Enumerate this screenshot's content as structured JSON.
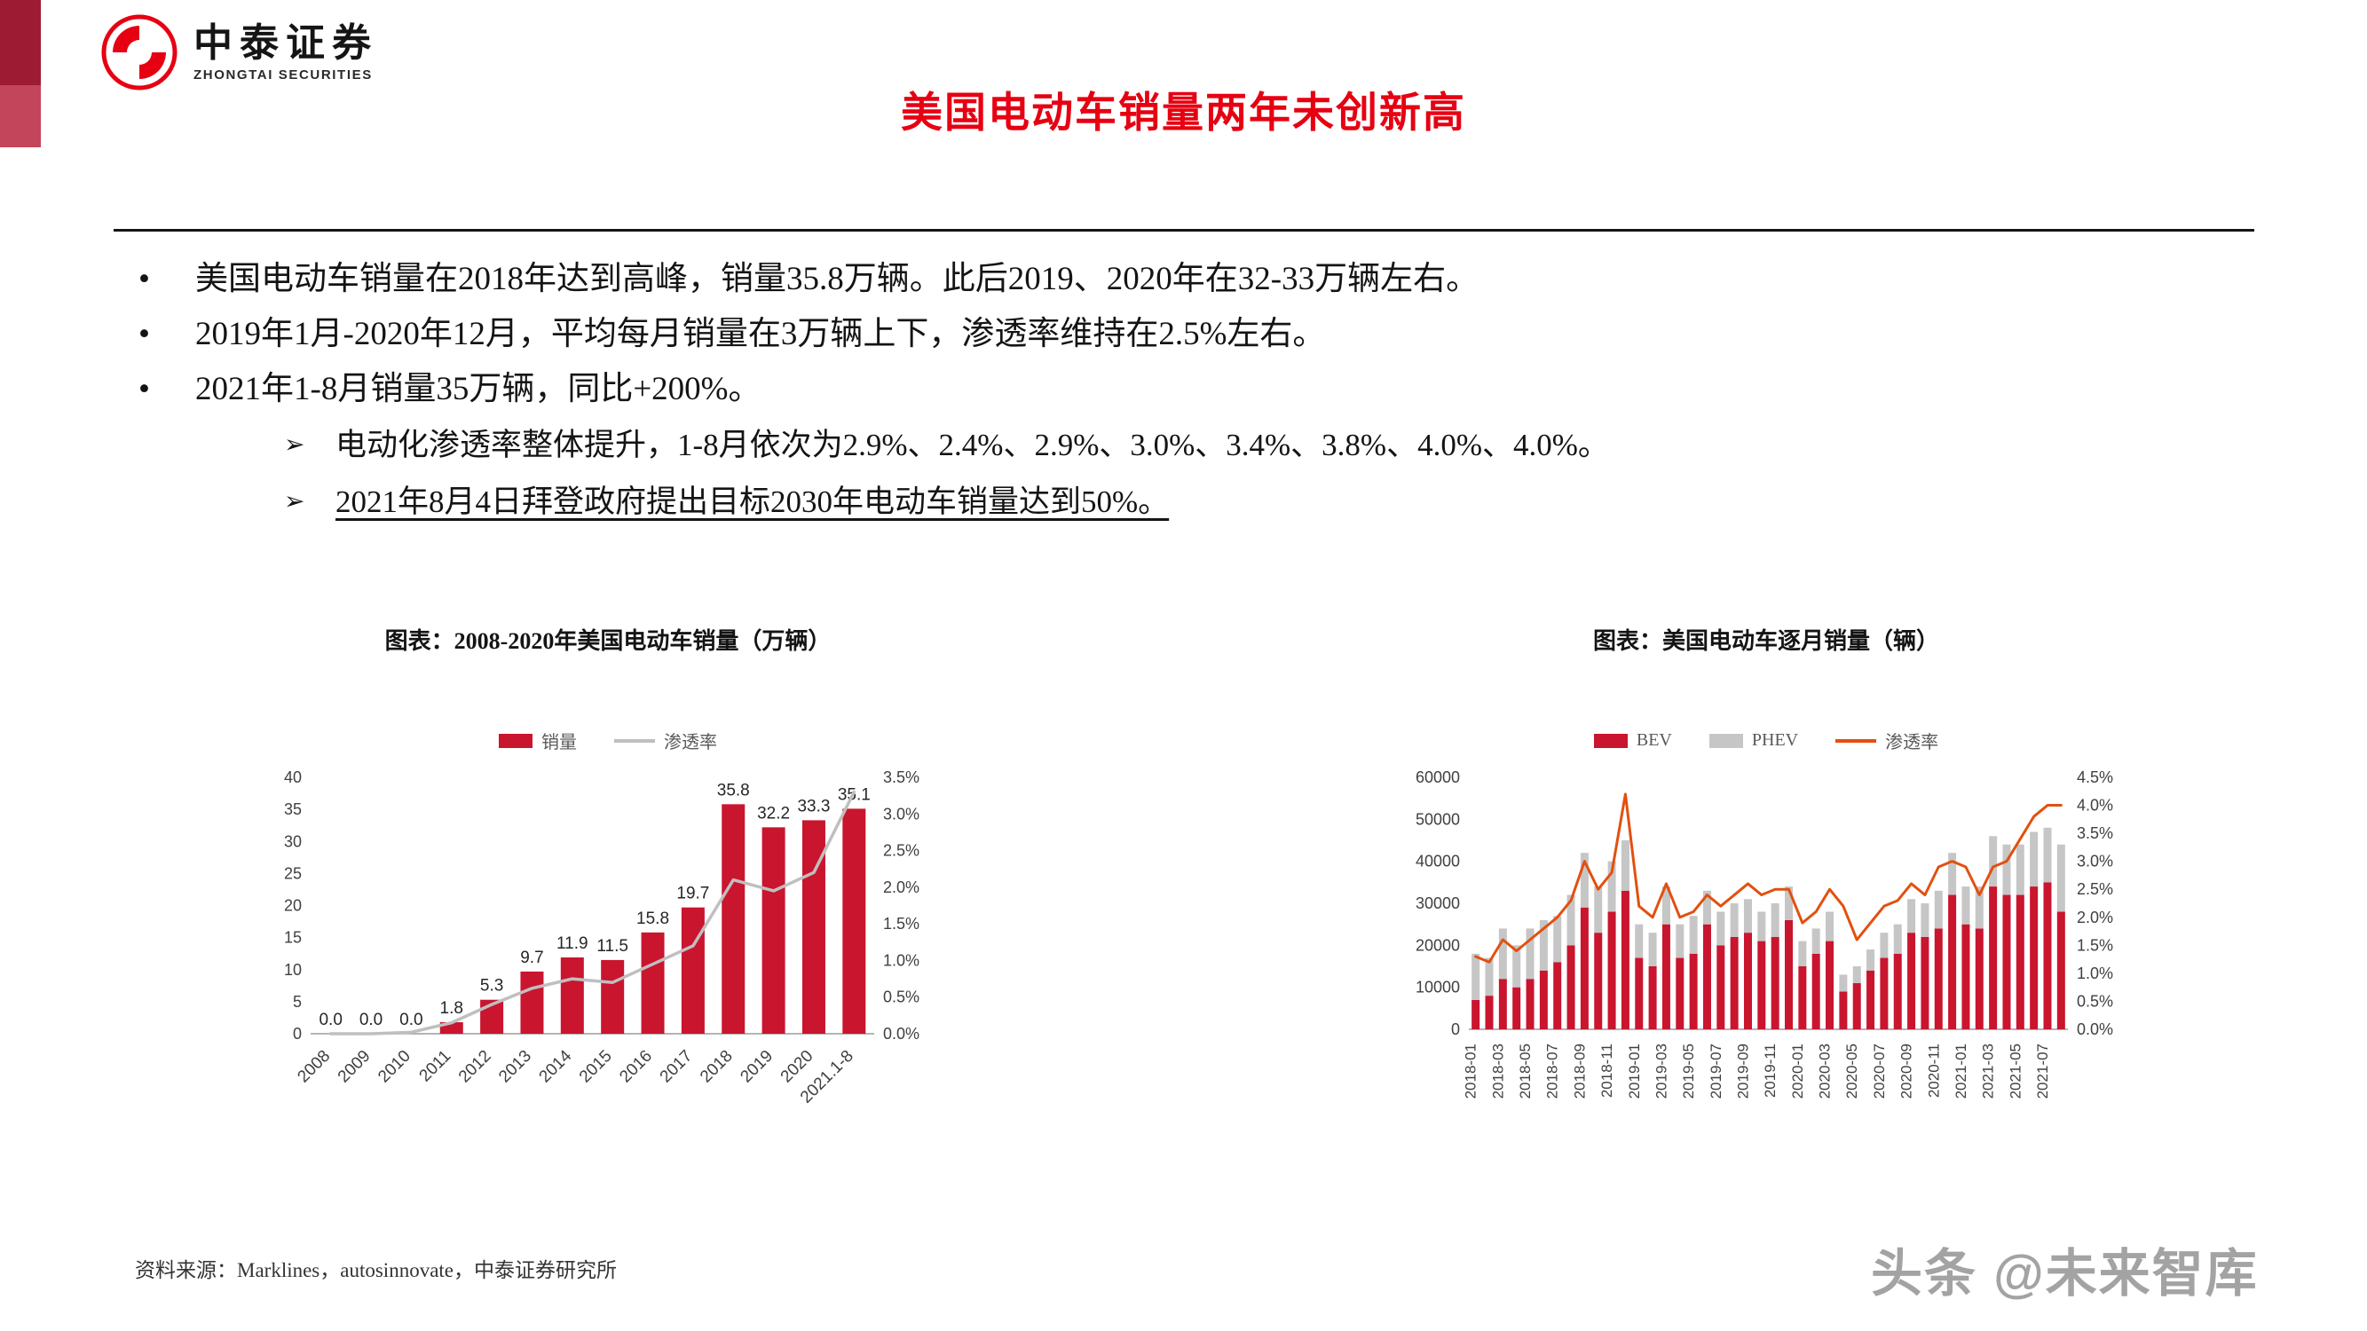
{
  "brand": {
    "name_cn": "中泰证券",
    "name_en": "ZHONGTAI SECURITIES"
  },
  "title": "美国电动车销量两年未创新高",
  "bullets": [
    "美国电动车销量在2018年达到高峰，销量35.8万辆。此后2019、2020年在32-33万辆左右。",
    "2019年1月-2020年12月，平均每月销量在3万辆上下，渗透率维持在2.5%左右。",
    "2021年1-8月销量35万辆，同比+200%。"
  ],
  "sub_bullets": [
    {
      "text": "电动化渗透率整体提升，1-8月依次为2.9%、2.4%、2.9%、3.0%、3.4%、3.8%、4.0%、4.0%。",
      "underline": false
    },
    {
      "text": "2021年8月4日拜登政府提出目标2030年电动车销量达到50%。",
      "underline": true
    }
  ],
  "source": "资料来源：Marklines，autosinnovate，中泰证券研究所",
  "watermark": "头条 @未来智库",
  "colors": {
    "brand_red": "#e60012",
    "bar_red": "#c9152e",
    "bar_gray": "#c6c6c6",
    "line_gray": "#bfbfbf",
    "line_orange": "#e2500f",
    "accent_dark": "#9e1c33",
    "accent_light": "#c2455c"
  },
  "chart_data": [
    {
      "type": "bar",
      "title": "图表：2008-2020年美国电动车销量（万辆）",
      "categories": [
        "2008",
        "2009",
        "2010",
        "2011",
        "2012",
        "2013",
        "2014",
        "2015",
        "2016",
        "2017",
        "2018",
        "2019",
        "2020",
        "2021.1-8"
      ],
      "series": [
        {
          "name": "销量",
          "type": "bar",
          "color": "#c9152e",
          "axis": "left",
          "values": [
            0.0,
            0.0,
            0.0,
            1.8,
            5.3,
            9.7,
            11.9,
            11.5,
            15.8,
            19.7,
            35.8,
            32.2,
            33.3,
            35.1
          ]
        },
        {
          "name": "渗透率",
          "type": "line",
          "color": "#bfbfbf",
          "axis": "right",
          "values": [
            0.0,
            0.0,
            0.02,
            0.15,
            0.4,
            0.62,
            0.75,
            0.7,
            0.95,
            1.2,
            2.1,
            1.95,
            2.2,
            3.3
          ]
        }
      ],
      "ylim_left": [
        0,
        40
      ],
      "ytick_left": 5,
      "ylim_right": [
        0,
        3.5
      ],
      "ytick_right": 0.5,
      "grid": false,
      "legend_position": "top",
      "bar_labels": true
    },
    {
      "type": "bar",
      "stacked": true,
      "title": "图表：美国电动车逐月销量（辆）",
      "categories": [
        "2018-01",
        "2018-02",
        "2018-03",
        "2018-04",
        "2018-05",
        "2018-06",
        "2018-07",
        "2018-08",
        "2018-09",
        "2018-10",
        "2018-11",
        "2018-12",
        "2019-01",
        "2019-02",
        "2019-03",
        "2019-04",
        "2019-05",
        "2019-06",
        "2019-07",
        "2019-08",
        "2019-09",
        "2019-10",
        "2019-11",
        "2019-12",
        "2020-01",
        "2020-02",
        "2020-03",
        "2020-04",
        "2020-05",
        "2020-06",
        "2020-07",
        "2020-08",
        "2020-09",
        "2020-10",
        "2020-11",
        "2020-12",
        "2021-01",
        "2021-02",
        "2021-03",
        "2021-04",
        "2021-05",
        "2021-06",
        "2021-07",
        "2021-08"
      ],
      "series": [
        {
          "name": "BEV",
          "type": "bar",
          "color": "#c9152e",
          "axis": "left",
          "values": [
            7000,
            8000,
            12000,
            10000,
            12000,
            14000,
            16000,
            20000,
            29000,
            23000,
            28000,
            33000,
            17000,
            15000,
            25000,
            17000,
            18000,
            25000,
            20000,
            22000,
            23000,
            21000,
            22000,
            26000,
            15000,
            18000,
            21000,
            9000,
            11000,
            14000,
            17000,
            18000,
            23000,
            22000,
            24000,
            32000,
            25000,
            24000,
            34000,
            32000,
            32000,
            34000,
            35000,
            28000
          ]
        },
        {
          "name": "PHEV",
          "type": "bar",
          "color": "#c6c6c6",
          "axis": "left",
          "values": [
            11000,
            9000,
            12000,
            10000,
            12000,
            12000,
            11000,
            12000,
            13000,
            11000,
            12000,
            12000,
            8000,
            8000,
            9000,
            8000,
            9000,
            8000,
            8000,
            8000,
            8000,
            7000,
            8000,
            8000,
            6000,
            6000,
            7000,
            4000,
            4000,
            5000,
            6000,
            7000,
            8000,
            8000,
            9000,
            10000,
            9000,
            10000,
            12000,
            12000,
            12000,
            13000,
            13000,
            16000
          ]
        },
        {
          "name": "渗透率",
          "type": "line",
          "color": "#e2500f",
          "axis": "right",
          "values": [
            1.3,
            1.2,
            1.6,
            1.4,
            1.6,
            1.8,
            2.0,
            2.3,
            3.0,
            2.5,
            2.8,
            4.2,
            2.2,
            2.0,
            2.6,
            2.0,
            2.1,
            2.4,
            2.2,
            2.4,
            2.6,
            2.4,
            2.5,
            2.5,
            1.9,
            2.1,
            2.5,
            2.2,
            1.6,
            1.9,
            2.2,
            2.3,
            2.6,
            2.4,
            2.9,
            3.0,
            2.9,
            2.4,
            2.9,
            3.0,
            3.4,
            3.8,
            4.0,
            4.0
          ]
        }
      ],
      "ylim_left": [
        0,
        60000
      ],
      "ytick_left": 10000,
      "ylim_right": [
        0,
        4.5
      ],
      "ytick_right": 0.5,
      "grid": false,
      "legend_position": "top",
      "bar_labels": false,
      "xtick_every": 2
    }
  ]
}
